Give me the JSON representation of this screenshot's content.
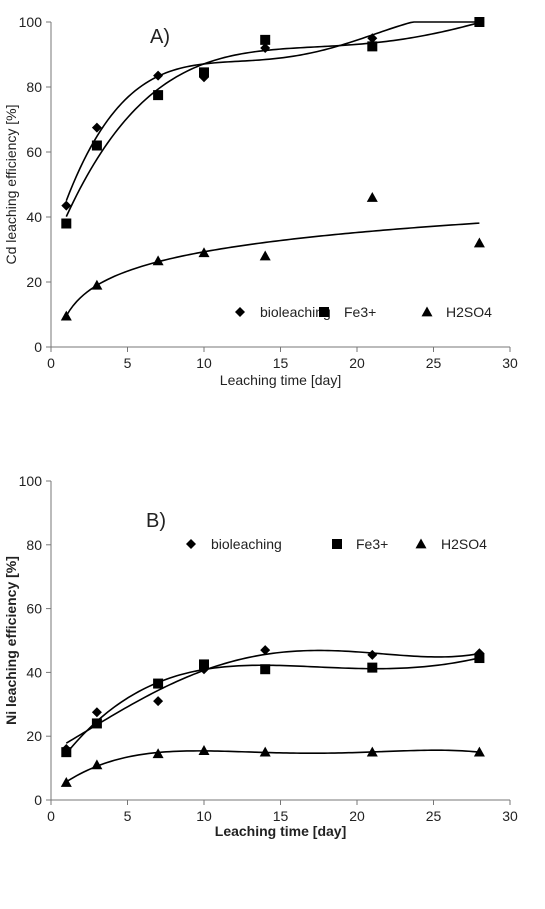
{
  "chart_data": [
    {
      "type": "scatter",
      "panel_label": "A)",
      "xlabel": "Leaching time [day]",
      "ylabel": "Cd leaching efficiency [%]",
      "xlim": [
        0,
        30
      ],
      "ylim": [
        0,
        100
      ],
      "xticks": [
        "0",
        "5",
        "10",
        "15",
        "20",
        "25",
        "30"
      ],
      "yticks": [
        "0",
        "20",
        "40",
        "60",
        "80",
        "100"
      ],
      "grid": false,
      "legend_position": "bottom",
      "bold_axis_titles": false,
      "series": [
        {
          "name": "bioleaching",
          "marker": "diamond",
          "trendline": "polynomial",
          "x": [
            1,
            3,
            7,
            10,
            14,
            21,
            28
          ],
          "y": [
            43.5,
            67.5,
            83.5,
            83,
            92,
            95,
            100
          ]
        },
        {
          "name": "Fe3+",
          "marker": "square",
          "trendline": "polynomial",
          "x": [
            1,
            3,
            7,
            10,
            14,
            21,
            28
          ],
          "y": [
            38,
            62,
            77.5,
            84.5,
            94.5,
            92.5,
            100
          ]
        },
        {
          "name": "H2SO4",
          "marker": "triangle",
          "trendline": "logarithmic",
          "x": [
            1,
            3,
            7,
            10,
            14,
            21,
            28
          ],
          "y": [
            9.5,
            19,
            26.5,
            29,
            28,
            46,
            32
          ]
        }
      ]
    },
    {
      "type": "scatter",
      "panel_label": "B)",
      "xlabel": "Leaching time [day]",
      "ylabel": "Ni leaching efficiency [%]",
      "xlim": [
        0,
        30
      ],
      "ylim": [
        0,
        100
      ],
      "xticks": [
        "0",
        "5",
        "10",
        "15",
        "20",
        "25",
        "30"
      ],
      "yticks": [
        "0",
        "20",
        "40",
        "60",
        "80",
        "100"
      ],
      "grid": false,
      "legend_position": "top",
      "bold_axis_titles": true,
      "series": [
        {
          "name": "bioleaching",
          "marker": "diamond",
          "trendline": "polynomial",
          "x": [
            1,
            3,
            7,
            10,
            14,
            21,
            28
          ],
          "y": [
            16,
            27.5,
            31,
            41,
            47,
            45.5,
            46
          ]
        },
        {
          "name": "Fe3+",
          "marker": "square",
          "trendline": "polynomial",
          "x": [
            1,
            3,
            7,
            10,
            14,
            21,
            28
          ],
          "y": [
            15,
            24,
            36.5,
            42.5,
            41,
            41.5,
            44.5
          ]
        },
        {
          "name": "H2SO4",
          "marker": "triangle",
          "trendline": "polynomial",
          "x": [
            1,
            3,
            7,
            10,
            14,
            21,
            28
          ],
          "y": [
            5.5,
            11,
            14.5,
            15.5,
            15,
            15,
            15
          ]
        }
      ]
    }
  ]
}
